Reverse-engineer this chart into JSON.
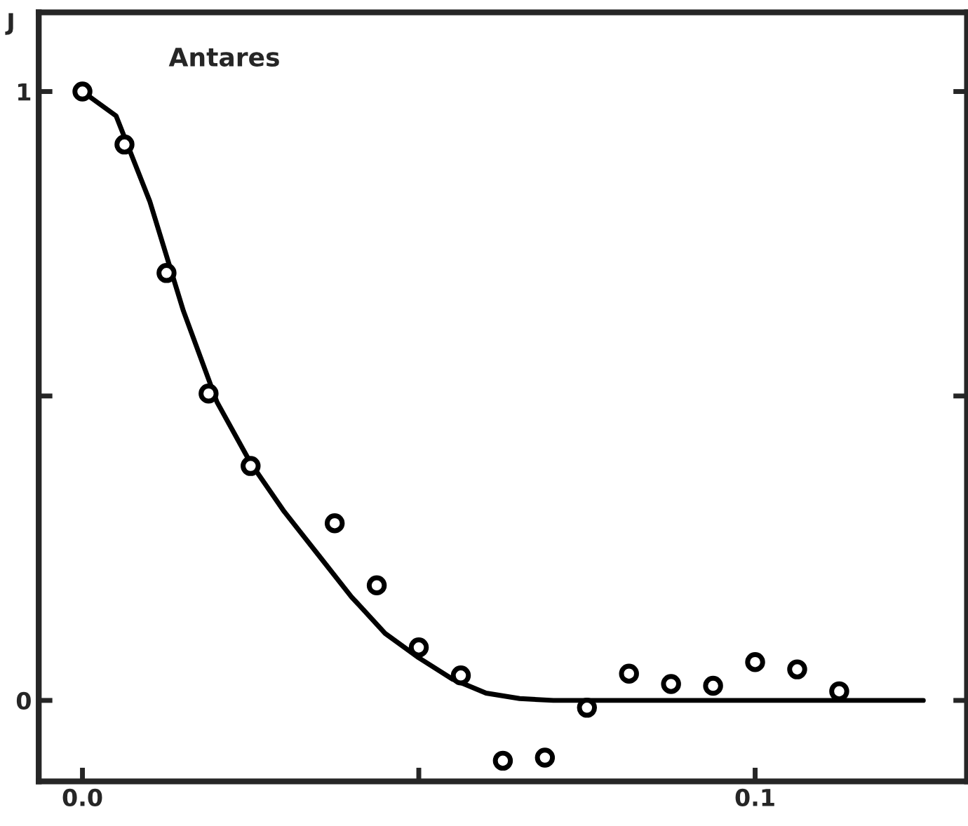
{
  "chart_data": {
    "type": "scatter",
    "ylabel": "J",
    "annotations": [
      "Antares"
    ],
    "xlim": [
      -0.0065,
      0.1315
    ],
    "ylim": [
      -0.133,
      1.13
    ],
    "xticks": [
      {
        "value": 0.0,
        "label": "0.0"
      },
      {
        "value": 0.05,
        "label": null
      },
      {
        "value": 0.1,
        "label": "0.1"
      }
    ],
    "yticks": [
      0,
      {
        "value": 0.5,
        "label": null
      },
      1
    ],
    "grid": false,
    "legend": false,
    "marker": "circle",
    "series": [
      {
        "color": "#000000",
        "x": [
          0,
          0.00625,
          0.0125,
          0.01875,
          0.025,
          0.0375,
          0.04375,
          0.05,
          0.05625,
          0.0625,
          0.06875,
          0.075,
          0.08125,
          0.0875,
          0.09375,
          0.1,
          0.10625,
          0.1125
        ],
        "values": [
          1,
          0.913,
          0.702,
          0.504,
          0.385,
          0.291,
          0.189,
          0.087,
          0.041,
          -0.099,
          -0.094,
          -0.012,
          0.044,
          0.027,
          0.024,
          0.063,
          0.051,
          0.015
        ]
      },
      {
        "type": "line",
        "color": "#000000",
        "line_style": "solid",
        "marker": "none",
        "x": [
          0,
          0.005,
          0.01,
          0.015,
          0.02,
          0.025,
          0.03,
          0.035,
          0.04,
          0.045,
          0.05,
          0.055,
          0.06,
          0.065,
          0.07,
          0.08,
          0.1,
          0.125
        ],
        "values": [
          1,
          0.96,
          0.82,
          0.64,
          0.49,
          0.39,
          0.31,
          0.24,
          0.17,
          0.11,
          0.07,
          0.035,
          0.012,
          0.003,
          0,
          0,
          0,
          0
        ]
      }
    ]
  }
}
